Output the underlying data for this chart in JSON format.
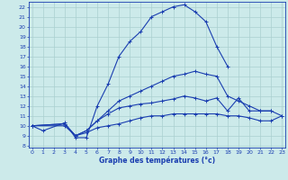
{
  "background_color": "#cceaea",
  "grid_color": "#aacfcf",
  "line_color": "#1a3eb0",
  "xlabel": "Graphe des températures (°c)",
  "xlabel_color": "#1a3eb0",
  "x_ticks": [
    0,
    1,
    2,
    3,
    4,
    5,
    6,
    7,
    8,
    9,
    10,
    11,
    12,
    13,
    14,
    15,
    16,
    17,
    18,
    19,
    20,
    21,
    22,
    23
  ],
  "y_ticks": [
    8,
    9,
    10,
    11,
    12,
    13,
    14,
    15,
    16,
    17,
    18,
    19,
    20,
    21,
    22
  ],
  "ylim": [
    7.8,
    22.5
  ],
  "xlim": [
    -0.3,
    23.3
  ],
  "series": [
    {
      "x": [
        0,
        1,
        3,
        4,
        5,
        6,
        7,
        8,
        9,
        10,
        11,
        12,
        13,
        14,
        15,
        16,
        17,
        18
      ],
      "y": [
        10.0,
        9.5,
        10.3,
        8.8,
        8.8,
        12.0,
        14.2,
        17.0,
        18.5,
        19.5,
        21.0,
        21.5,
        22.0,
        22.2,
        21.5,
        20.5,
        18.0,
        16.0
      ]
    },
    {
      "x": [
        0,
        3,
        4,
        5,
        6,
        7,
        8,
        9,
        10,
        11,
        12,
        13,
        14,
        15,
        16,
        17,
        18,
        19,
        20,
        21,
        22
      ],
      "y": [
        10.0,
        10.2,
        9.0,
        9.5,
        10.5,
        11.5,
        12.5,
        13.0,
        13.5,
        14.0,
        14.5,
        15.0,
        15.2,
        15.5,
        15.2,
        15.0,
        13.0,
        12.5,
        12.0,
        11.5,
        11.5
      ]
    },
    {
      "x": [
        0,
        3,
        4,
        5,
        6,
        7,
        8,
        9,
        10,
        11,
        12,
        13,
        14,
        15,
        16,
        17,
        18,
        19,
        20,
        21,
        22,
        23
      ],
      "y": [
        10.0,
        10.2,
        9.0,
        9.5,
        10.5,
        11.2,
        11.8,
        12.0,
        12.2,
        12.3,
        12.5,
        12.7,
        13.0,
        12.8,
        12.5,
        12.8,
        11.5,
        12.8,
        11.5,
        11.5,
        11.5,
        11.0
      ]
    },
    {
      "x": [
        0,
        3,
        4,
        5,
        6,
        7,
        8,
        9,
        10,
        11,
        12,
        13,
        14,
        15,
        16,
        17,
        18,
        19,
        20,
        21,
        22,
        23
      ],
      "y": [
        10.0,
        10.0,
        9.0,
        9.3,
        9.8,
        10.0,
        10.2,
        10.5,
        10.8,
        11.0,
        11.0,
        11.2,
        11.2,
        11.2,
        11.2,
        11.2,
        11.0,
        11.0,
        10.8,
        10.5,
        10.5,
        11.0
      ]
    }
  ]
}
